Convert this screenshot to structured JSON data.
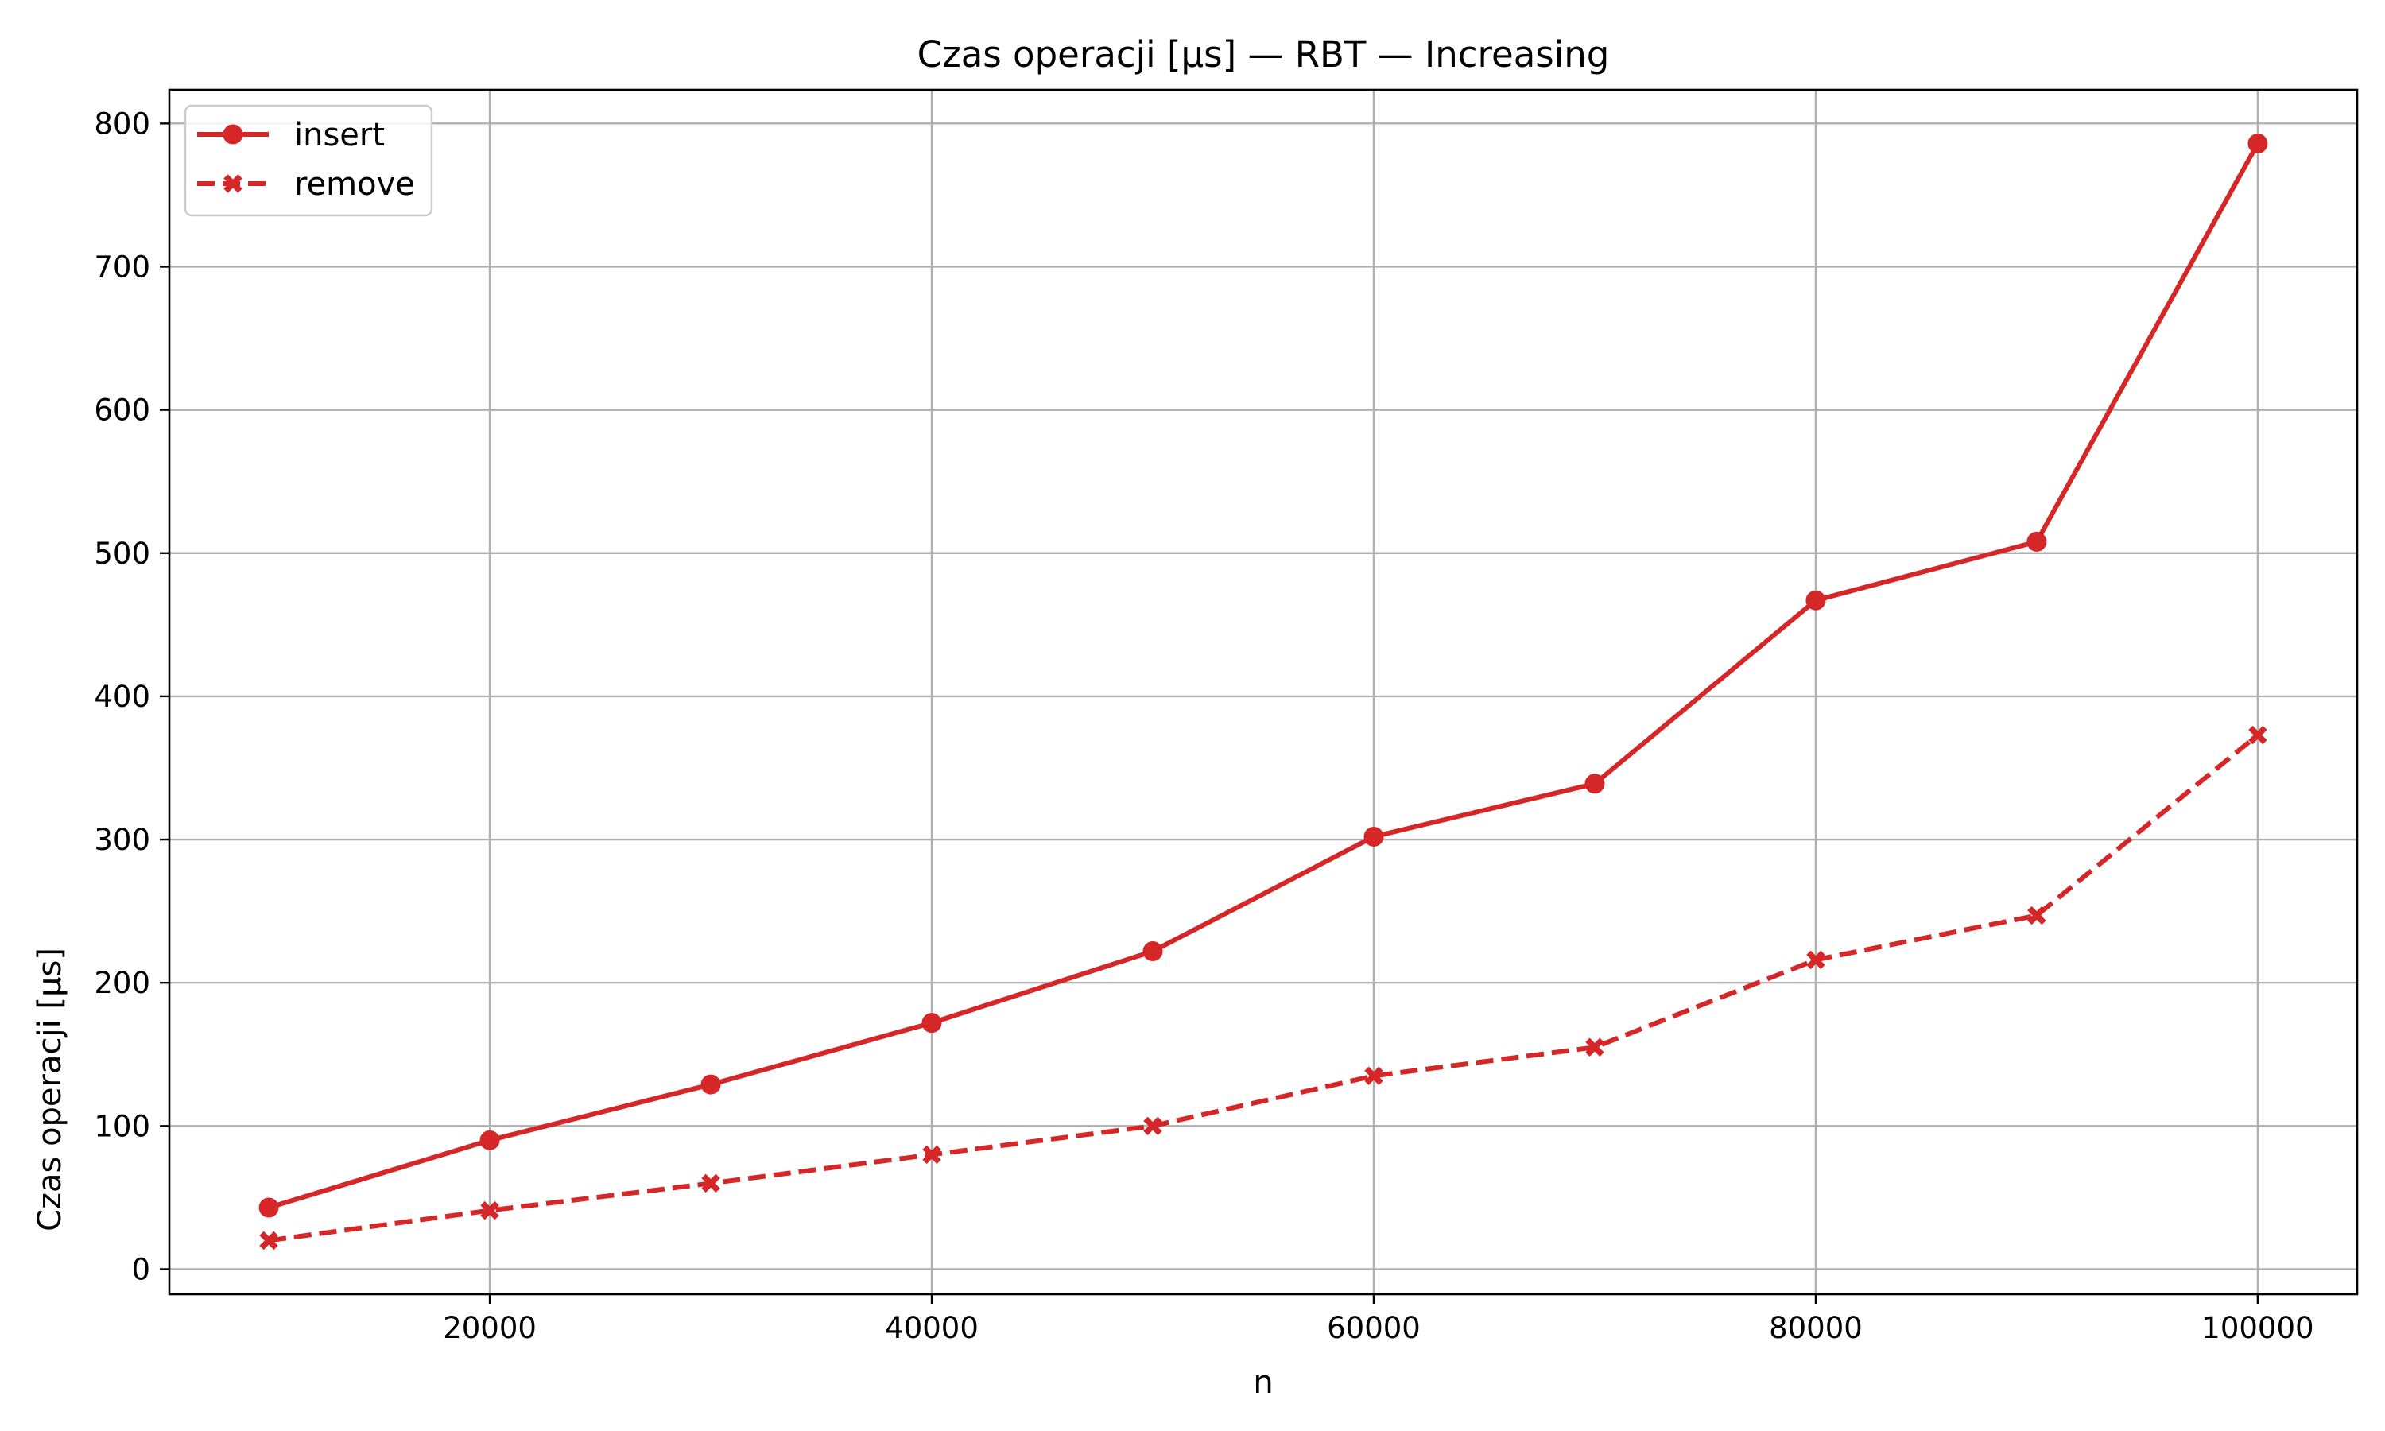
{
  "chart_data": {
    "type": "line",
    "title": "Czas operacji [µs] — RBT — Increasing",
    "xlabel": "n",
    "ylabel": "Czas operacji [µs]",
    "x": [
      10000,
      20000,
      30000,
      40000,
      50000,
      60000,
      70000,
      80000,
      90000,
      100000
    ],
    "xlim": [
      5500,
      104500
    ],
    "ylim": [
      -17.5,
      823.5
    ],
    "x_ticks": [
      20000,
      40000,
      60000,
      80000,
      100000
    ],
    "y_ticks": [
      0,
      100,
      200,
      300,
      400,
      500,
      600,
      700,
      800
    ],
    "x_tick_labels": [
      "20000",
      "40000",
      "60000",
      "80000",
      "100000"
    ],
    "y_tick_labels": [
      "0",
      "100",
      "200",
      "300",
      "400",
      "500",
      "600",
      "700",
      "800"
    ],
    "grid": true,
    "legend_position": "top-left",
    "series": [
      {
        "name": "insert",
        "color": "#d62728",
        "line_style": "solid",
        "marker": "circle",
        "values": [
          43,
          90,
          129,
          172,
          222,
          302,
          339,
          467,
          508,
          786
        ]
      },
      {
        "name": "remove",
        "color": "#d62728",
        "line_style": "dashed",
        "marker": "x",
        "values": [
          20,
          41,
          60,
          80,
          100,
          135,
          155,
          216,
          247,
          373
        ]
      }
    ]
  }
}
